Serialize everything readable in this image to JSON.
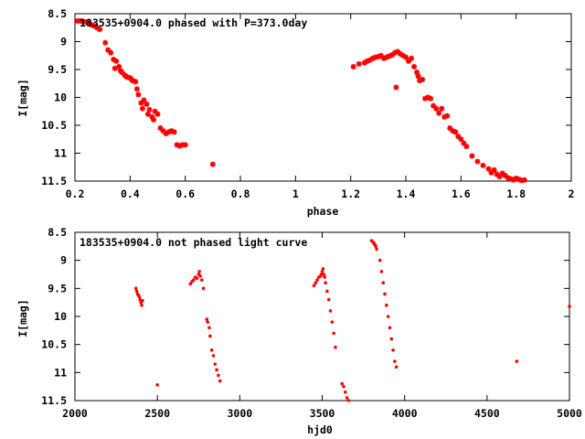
{
  "chart_data": [
    {
      "type": "scatter",
      "title": "183535+0904.0 phased with P=373.0day",
      "xlabel": "phase",
      "ylabel": "I[mag]",
      "xlim": [
        0.2,
        2.0
      ],
      "ylim": [
        11.5,
        8.5
      ],
      "y_inverted": true,
      "xticks": [
        "0.2",
        "0.4",
        "0.6",
        "0.8",
        "1",
        "1.2",
        "1.4",
        "1.6",
        "1.8",
        "2"
      ],
      "yticks": [
        "8.5",
        "9",
        "9.5",
        "10",
        "10.5",
        "11",
        "11.5"
      ],
      "marker": "cross",
      "color": "#ff0000",
      "grid": false,
      "x": [
        0.21,
        0.22,
        0.23,
        0.24,
        0.25,
        0.26,
        0.27,
        0.28,
        0.29,
        0.31,
        0.32,
        0.33,
        0.34,
        0.345,
        0.35,
        0.36,
        0.365,
        0.37,
        0.38,
        0.385,
        0.39,
        0.4,
        0.405,
        0.41,
        0.42,
        0.425,
        0.43,
        0.44,
        0.445,
        0.45,
        0.46,
        0.465,
        0.47,
        0.48,
        0.485,
        0.49,
        0.5,
        0.51,
        0.52,
        0.53,
        0.54,
        0.55,
        0.56,
        0.57,
        0.58,
        0.59,
        0.6,
        0.7,
        1.21,
        1.23,
        1.25,
        1.26,
        1.27,
        1.28,
        1.29,
        1.3,
        1.31,
        1.32,
        1.33,
        1.34,
        1.35,
        1.36,
        1.365,
        1.37,
        1.38,
        1.39,
        1.4,
        1.41,
        1.42,
        1.43,
        1.44,
        1.445,
        1.45,
        1.46,
        1.47,
        1.48,
        1.49,
        1.5,
        1.51,
        1.52,
        1.53,
        1.54,
        1.55,
        1.56,
        1.57,
        1.58,
        1.59,
        1.6,
        1.61,
        1.62,
        1.64,
        1.66,
        1.68,
        1.7,
        1.71,
        1.72,
        1.73,
        1.74,
        1.75,
        1.76,
        1.77,
        1.78,
        1.79,
        1.8,
        1.81,
        1.82,
        1.83
      ],
      "y": [
        8.63,
        8.63,
        8.64,
        8.65,
        8.66,
        8.7,
        8.72,
        8.75,
        8.78,
        9.02,
        9.15,
        9.2,
        9.32,
        9.48,
        9.35,
        9.45,
        9.52,
        9.55,
        9.6,
        9.62,
        9.64,
        9.65,
        9.68,
        9.7,
        9.72,
        9.85,
        9.95,
        10.1,
        10.2,
        10.05,
        10.12,
        10.3,
        10.22,
        10.35,
        10.4,
        10.25,
        10.3,
        10.55,
        10.6,
        10.65,
        10.62,
        10.6,
        10.62,
        10.85,
        10.87,
        10.85,
        10.85,
        11.2,
        9.45,
        9.4,
        9.38,
        9.35,
        9.33,
        9.3,
        9.28,
        9.27,
        9.25,
        9.3,
        9.28,
        9.26,
        9.24,
        9.2,
        9.82,
        9.18,
        9.22,
        9.25,
        9.28,
        9.35,
        9.3,
        9.45,
        9.55,
        9.62,
        9.7,
        9.68,
        10.02,
        10.0,
        10.02,
        10.15,
        10.2,
        10.28,
        10.2,
        10.35,
        10.33,
        10.55,
        10.6,
        10.62,
        10.7,
        10.75,
        10.82,
        10.88,
        11.05,
        11.15,
        11.22,
        11.28,
        11.35,
        11.3,
        11.38,
        11.42,
        11.36,
        11.4,
        11.44,
        11.46,
        11.48,
        11.45,
        11.47,
        11.49,
        11.48
      ]
    },
    {
      "type": "scatter",
      "title": "183535+0904.0 not phased light curve",
      "xlabel": "hjd0",
      "ylabel": "I[mag]",
      "xlim": [
        2000,
        5000
      ],
      "ylim": [
        11.5,
        8.5
      ],
      "y_inverted": true,
      "xticks": [
        "2000",
        "2500",
        "3000",
        "3500",
        "4000",
        "4500",
        "5000"
      ],
      "yticks": [
        "8.5",
        "9",
        "9.5",
        "10",
        "10.5",
        "11",
        "11.5"
      ],
      "marker": "dot",
      "color": "#ff0000",
      "grid": false,
      "x": [
        2370,
        2375,
        2380,
        2385,
        2390,
        2395,
        2400,
        2405,
        2410,
        2500,
        2700,
        2710,
        2720,
        2730,
        2740,
        2750,
        2755,
        2760,
        2770,
        2780,
        2800,
        2805,
        2815,
        2820,
        2830,
        2840,
        2850,
        2860,
        2870,
        2880,
        3450,
        3460,
        3470,
        3480,
        3490,
        3495,
        3500,
        3505,
        3510,
        3515,
        3520,
        3530,
        3540,
        3550,
        3560,
        3570,
        3580,
        3620,
        3630,
        3640,
        3650,
        3660,
        3800,
        3810,
        3815,
        3820,
        3825,
        3830,
        3850,
        3860,
        3870,
        3880,
        3890,
        3900,
        3910,
        3920,
        3930,
        3940,
        3950,
        4680,
        5000
      ],
      "y": [
        9.5,
        9.55,
        9.6,
        9.62,
        9.65,
        9.7,
        9.75,
        9.8,
        9.72,
        11.22,
        9.42,
        9.38,
        9.35,
        9.3,
        9.32,
        9.25,
        9.2,
        9.28,
        9.35,
        9.5,
        10.05,
        10.1,
        10.2,
        10.35,
        10.6,
        10.7,
        10.85,
        10.95,
        11.05,
        11.15,
        9.45,
        9.4,
        9.35,
        9.3,
        9.28,
        9.25,
        9.2,
        9.15,
        9.25,
        9.3,
        9.4,
        9.55,
        9.7,
        9.9,
        10.1,
        10.3,
        10.55,
        11.2,
        11.25,
        11.35,
        11.45,
        11.5,
        8.65,
        8.68,
        8.7,
        8.72,
        8.75,
        8.8,
        9.0,
        9.2,
        9.4,
        9.6,
        9.8,
        10.0,
        10.2,
        10.4,
        10.6,
        10.8,
        10.9,
        10.8,
        9.82
      ]
    }
  ]
}
